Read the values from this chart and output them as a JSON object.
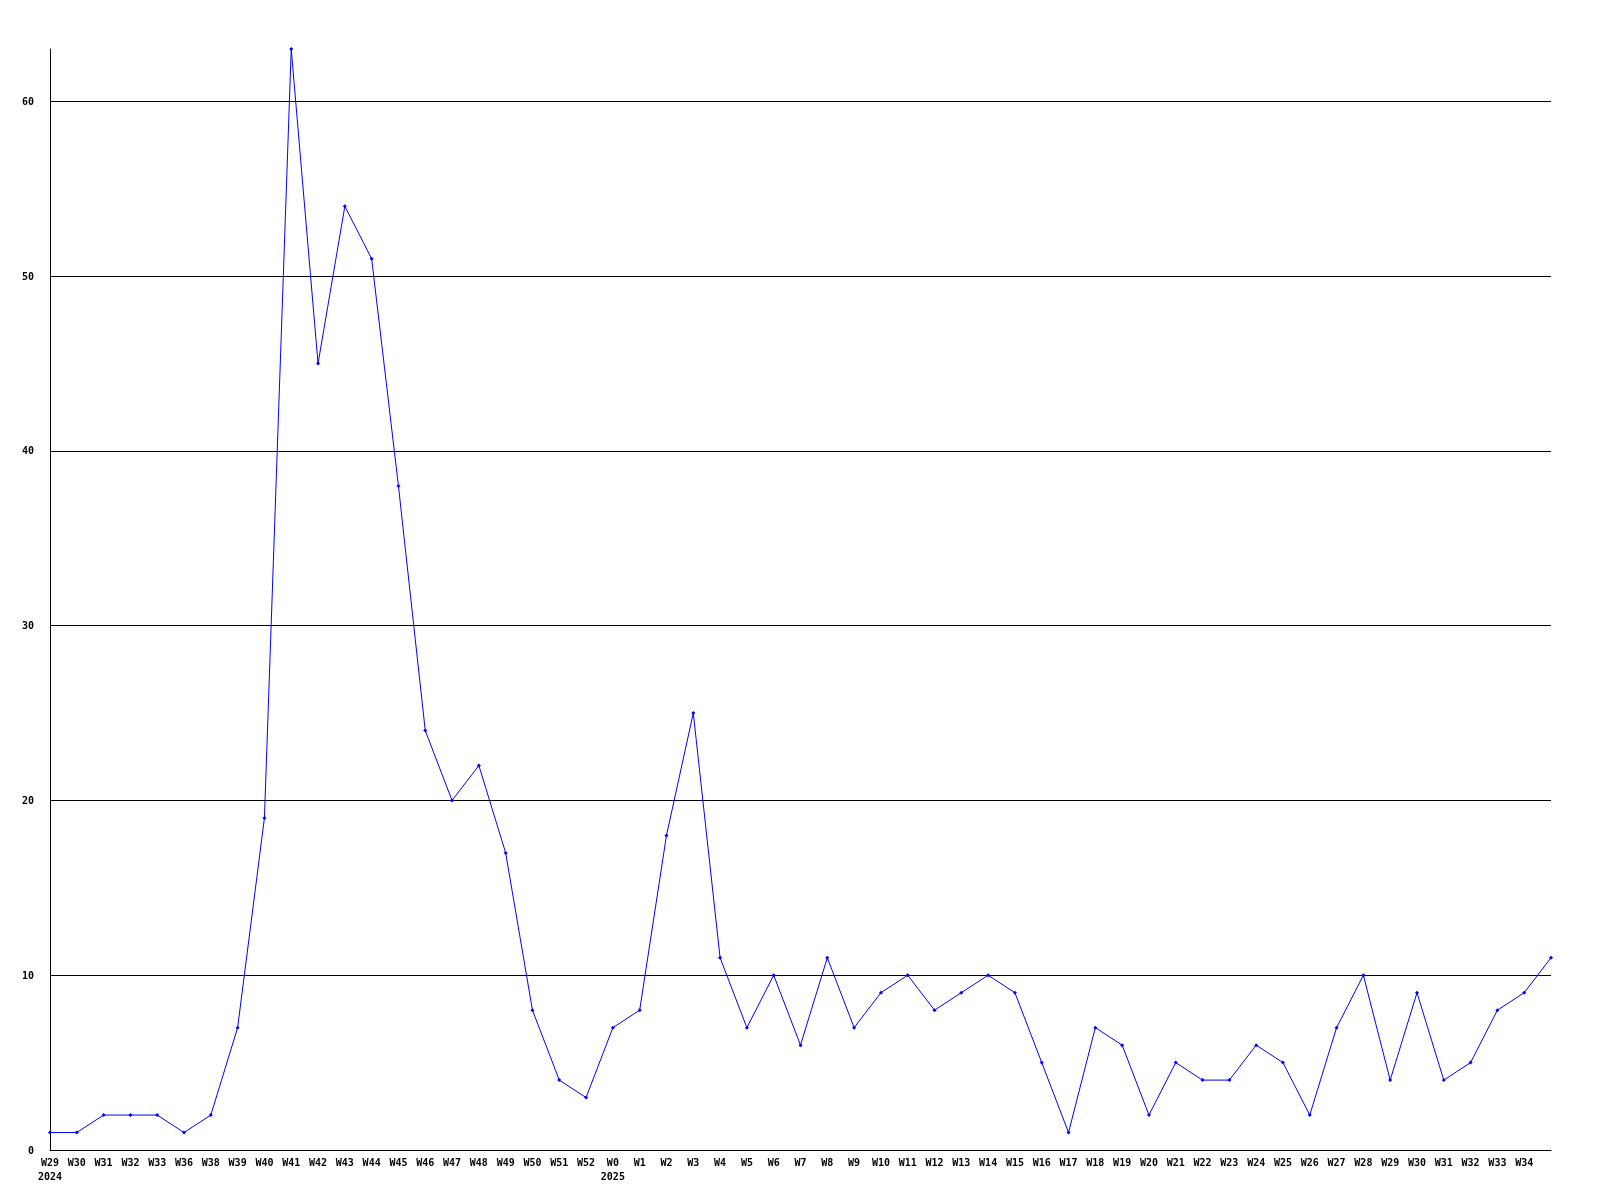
{
  "chart_data": {
    "type": "line",
    "categories": [
      "W29\n2024",
      "W30",
      "W31",
      "W32",
      "W33",
      "W36",
      "W38",
      "W39",
      "W40",
      "W41",
      "W42",
      "W43",
      "W44",
      "W45",
      "W46",
      "W47",
      "W48",
      "W49",
      "W50",
      "W51",
      "W52",
      "W0\n2025",
      "W1",
      "W2",
      "W3",
      "W4",
      "W5",
      "W6",
      "W7",
      "W8",
      "W9",
      "W10",
      "W11",
      "W12",
      "W13",
      "W14",
      "W15",
      "W16",
      "W17",
      "W18",
      "W19",
      "W20",
      "W21",
      "W22",
      "W23",
      "W24",
      "W25",
      "W26",
      "W27",
      "W28",
      "W29",
      "W30",
      "W31",
      "W32",
      "W33",
      "W34",
      null
    ],
    "series": [
      {
        "color": "#0000ff",
        "values": [
          1,
          1,
          2,
          2,
          2,
          1,
          2,
          7,
          19,
          63,
          45,
          54,
          51,
          38,
          24,
          20,
          22,
          17,
          8,
          4,
          3,
          7,
          8,
          18,
          25,
          11,
          7,
          10,
          6,
          11,
          7,
          9,
          10,
          8,
          9,
          10,
          9,
          5,
          1,
          7,
          6,
          2,
          5,
          4,
          4,
          6,
          5,
          2,
          7,
          10,
          4,
          9,
          4,
          5,
          8,
          9,
          11
        ]
      }
    ],
    "ylim": [
      0,
      63
    ],
    "yticks": [
      0,
      10,
      20,
      30,
      40,
      50,
      60
    ],
    "grid": "y",
    "marker": "diamond",
    "line_style": "solid"
  }
}
